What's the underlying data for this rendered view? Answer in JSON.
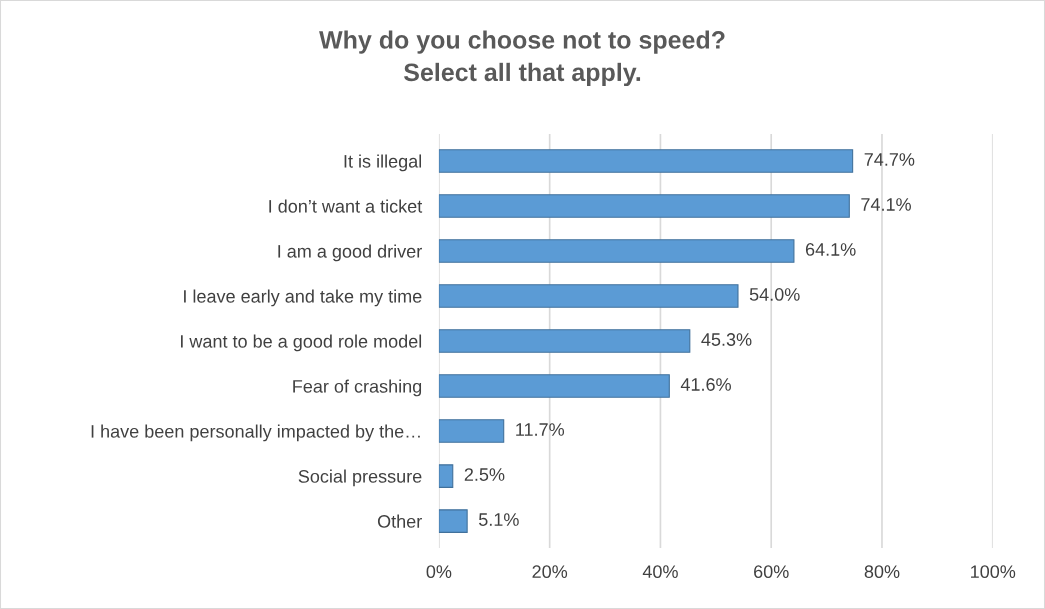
{
  "chart_data": {
    "type": "bar",
    "orientation": "horizontal",
    "title": "Why do you choose not to speed?\nSelect all that apply.",
    "categories": [
      "It is illegal",
      "I don’t want a ticket",
      "I am a good driver",
      "I leave early and take my time",
      "I want to be a good role model",
      "Fear of crashing",
      "I have been personally impacted by the…",
      "Social pressure",
      "Other"
    ],
    "values": [
      74.7,
      74.1,
      64.1,
      54.0,
      45.3,
      41.6,
      11.7,
      2.5,
      5.1
    ],
    "value_labels": [
      "74.7%",
      "74.1%",
      "64.1%",
      "54.0%",
      "45.3%",
      "41.6%",
      "11.7%",
      "2.5%",
      "5.1%"
    ],
    "color": "#5b9bd5",
    "xlim": [
      0,
      100
    ],
    "xticks": [
      {
        "value": 0,
        "label": "0%"
      },
      {
        "value": 20,
        "label": "20%"
      },
      {
        "value": 40,
        "label": "40%"
      },
      {
        "value": 60,
        "label": "60%"
      },
      {
        "value": 80,
        "label": "80%"
      },
      {
        "value": 100,
        "label": "100%"
      }
    ],
    "grid": "x",
    "legend": false
  }
}
